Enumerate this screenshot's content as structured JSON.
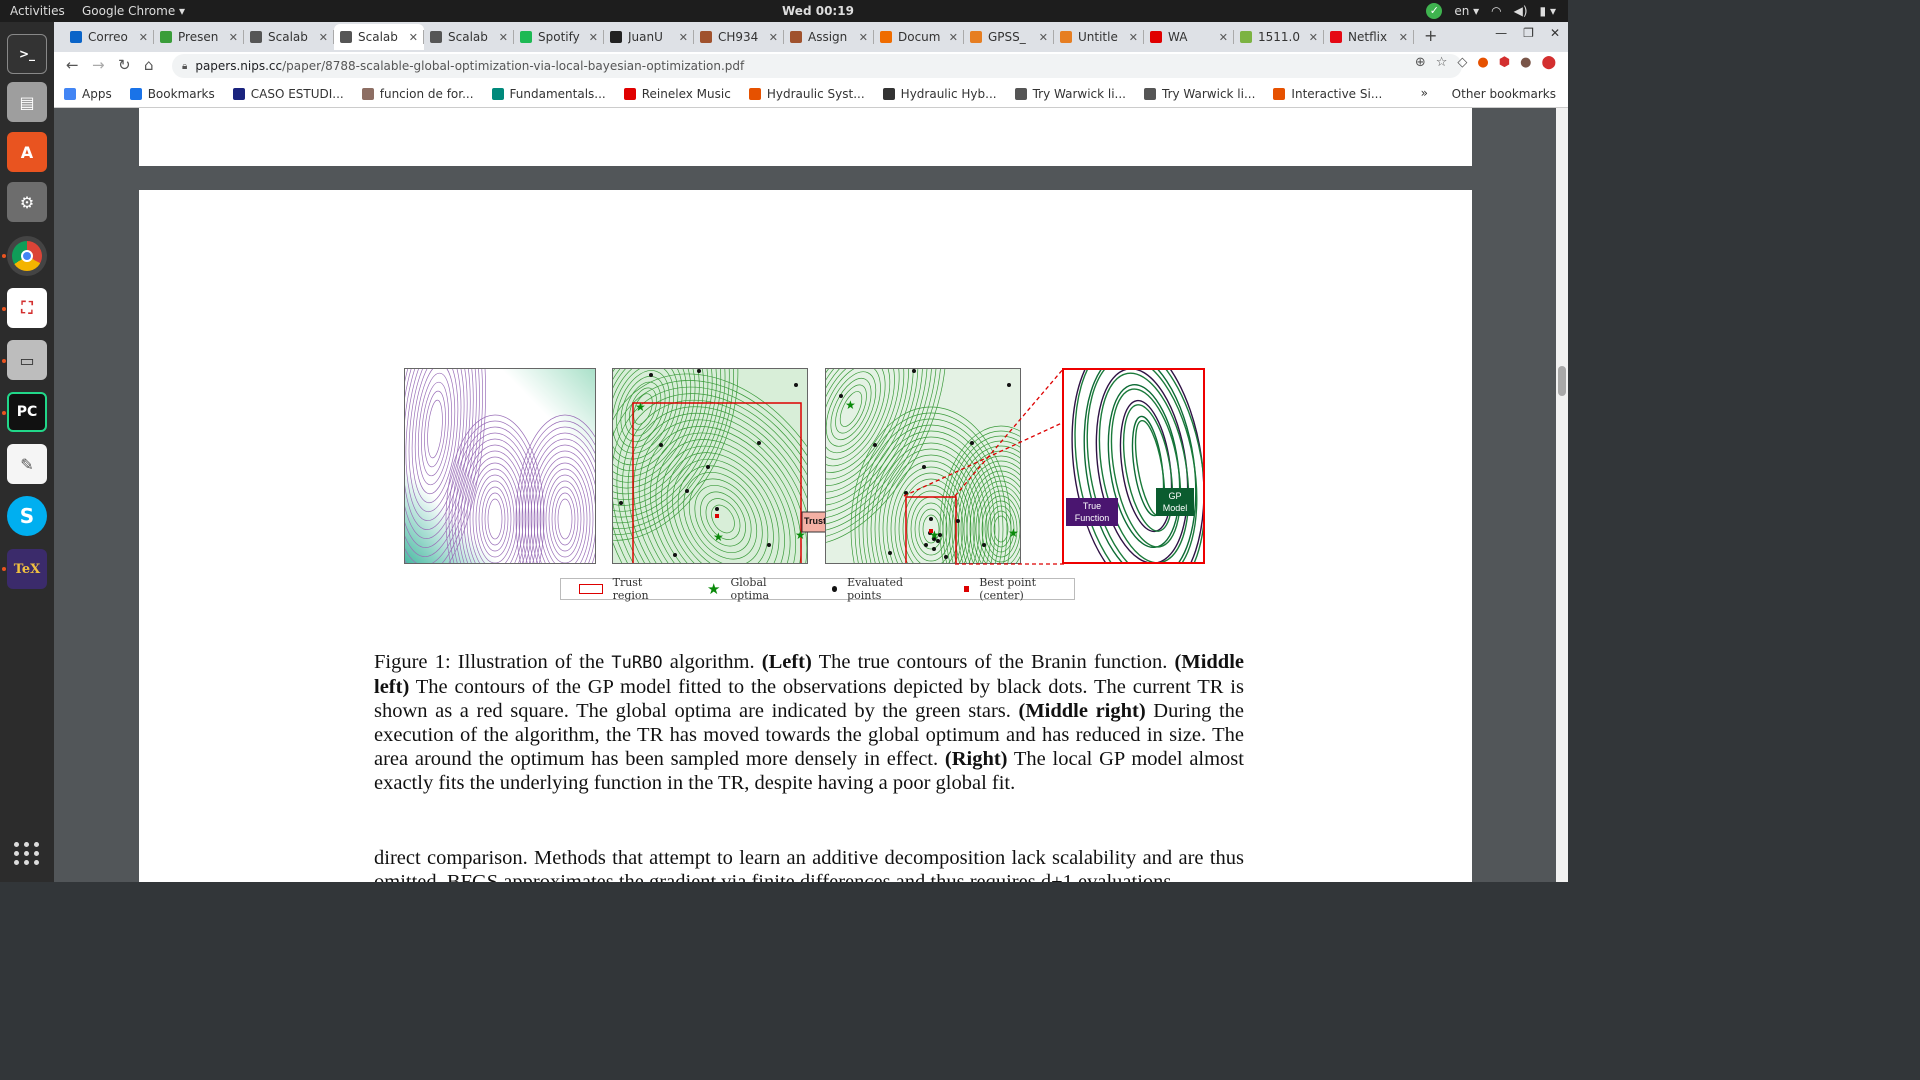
{
  "system": {
    "activities": "Activities",
    "app_name": "Google Chrome ▾",
    "clock": "Wed 00:19",
    "lang": "en ▾"
  },
  "tabs": [
    {
      "label": "Correo",
      "color": "#0a64c8"
    },
    {
      "label": "Presen",
      "color": "#3a9d3a"
    },
    {
      "label": "Scalab",
      "color": "#555555"
    },
    {
      "label": "Scalab",
      "color": "#555555",
      "active": true
    },
    {
      "label": "Scalab",
      "color": "#555555"
    },
    {
      "label": "Spotify",
      "color": "#1db954"
    },
    {
      "label": "JuanU",
      "color": "#222222"
    },
    {
      "label": "CH934",
      "color": "#a0522d"
    },
    {
      "label": "Assign",
      "color": "#a0522d"
    },
    {
      "label": "Docum",
      "color": "#ef6c00"
    },
    {
      "label": "GPSS_",
      "color": "#e67e22"
    },
    {
      "label": "Untitle",
      "color": "#e67e22"
    },
    {
      "label": "WA",
      "color": "#e00000"
    },
    {
      "label": "1511.0",
      "color": "#7cb342"
    },
    {
      "label": "Netflix",
      "color": "#e50914"
    }
  ],
  "address": {
    "host": "papers.nips.cc",
    "path": "/paper/8788-scalable-global-optimization-via-local-bayesian-optimization.pdf"
  },
  "bookmarks": [
    {
      "label": "Apps",
      "color": "#4285f4"
    },
    {
      "label": "Bookmarks",
      "color": "#1a73e8"
    },
    {
      "label": "CASO ESTUDI...",
      "color": "#1a237e"
    },
    {
      "label": "funcion de for...",
      "color": "#8d6e63"
    },
    {
      "label": "Fundamentals...",
      "color": "#00897b"
    },
    {
      "label": "Reinelex Music",
      "color": "#e00000"
    },
    {
      "label": "Hydraulic Syst...",
      "color": "#e65100"
    },
    {
      "label": "Hydraulic Hyb...",
      "color": "#333333"
    },
    {
      "label": "Try Warwick li...",
      "color": "#555555"
    },
    {
      "label": "Try Warwick li...",
      "color": "#555555"
    },
    {
      "label": "Interactive Si...",
      "color": "#e65100"
    }
  ],
  "other_bookmarks": "Other bookmarks",
  "figure": {
    "tr_update_label": "Trust Region Update",
    "true_function_label": "True Function",
    "gp_model_label": "GP Model",
    "legend": {
      "trust_region": "Trust region",
      "global_optima": "Global optima",
      "evaluated_points": "Evaluated points",
      "best_point": "Best point (center)"
    }
  },
  "caption": {
    "fig_label": "Figure 1:",
    "t1": " Illustration of the ",
    "algo": "TuRBO",
    "t2": " algorithm. ",
    "b_left": "(Left)",
    "t3": " The true contours of the Branin function. ",
    "b_ml": "(Middle left)",
    "t4": " The contours of the GP model fitted to the observations depicted by black dots. The current TR is shown as a red square. The global optima are indicated by the green stars. ",
    "b_mr": "(Middle right)",
    "t5": " During the execution of the algorithm, the TR has moved towards the global optimum and has reduced in size. The area around the optimum has been sampled more densely in effect. ",
    "b_r": "(Right)",
    "t6": " The local GP model almost exactly fits the underlying function in the TR, despite having a poor global fit."
  },
  "body_text": "direct comparison. Methods that attempt to learn an additive decomposition lack scalability and are thus omitted. BFGS approximates the gradient via finite differences and thus requires d+1 evaluations"
}
